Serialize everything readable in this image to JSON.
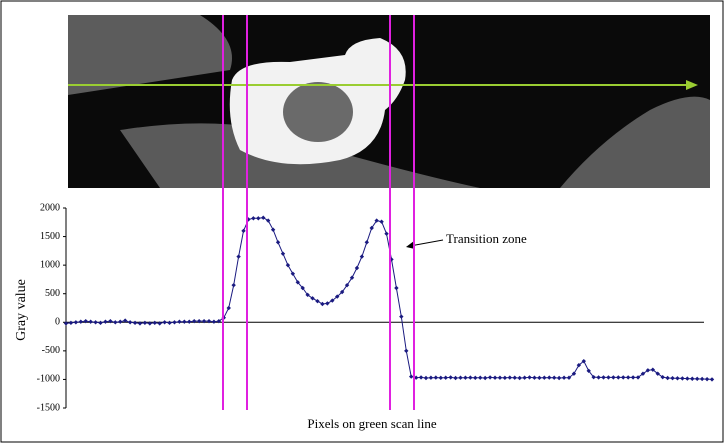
{
  "chart_data": {
    "type": "line",
    "y_label": "Gray value",
    "x_label": "Pixels on green scan line",
    "annotation": "Transition zone",
    "ylim": [
      -1500,
      2000
    ],
    "yticks": [
      -1500,
      -1000,
      -500,
      0,
      500,
      1000,
      1500,
      2000
    ],
    "series": [
      {
        "color": "#1a1a80",
        "values": [
          -20,
          -10,
          0,
          10,
          20,
          10,
          0,
          -10,
          10,
          20,
          0,
          10,
          30,
          0,
          -10,
          -20,
          -10,
          -20,
          -10,
          -20,
          0,
          -10,
          0,
          10,
          10,
          10,
          20,
          20,
          20,
          20,
          10,
          20,
          80,
          250,
          650,
          1150,
          1600,
          1800,
          1820,
          1820,
          1830,
          1780,
          1620,
          1400,
          1200,
          1000,
          850,
          700,
          600,
          480,
          420,
          370,
          320,
          330,
          380,
          450,
          530,
          650,
          780,
          950,
          1150,
          1400,
          1650,
          1780,
          1760,
          1550,
          1100,
          600,
          100,
          -500,
          -950,
          -970,
          -965,
          -975,
          -970,
          -968,
          -972,
          -970,
          -965,
          -975,
          -970,
          -970,
          -968,
          -972,
          -970,
          -975,
          -965,
          -970,
          -970,
          -972,
          -968,
          -970,
          -975,
          -970,
          -965,
          -970,
          -972,
          -970,
          -968,
          -970,
          -975,
          -970,
          -970,
          -900,
          -750,
          -680,
          -850,
          -960,
          -965,
          -965,
          -965,
          -965,
          -965,
          -965,
          -965,
          -965,
          -965,
          -900,
          -840,
          -830,
          -900,
          -960,
          -975,
          -978,
          -980,
          -982,
          -985,
          -988,
          -990,
          -992,
          -995,
          -1000
        ]
      }
    ]
  }
}
